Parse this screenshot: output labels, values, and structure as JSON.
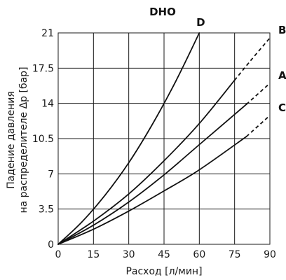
{
  "chart_data": {
    "type": "line",
    "title": "DHO",
    "xlabel": "Расход [л/мин]",
    "ylabel_lines": [
      "Падение давления",
      "на распределителе Δр [бар]"
    ],
    "xlim": [
      0,
      90
    ],
    "ylim": [
      0,
      21
    ],
    "x_ticks": [
      "0",
      "15",
      "30",
      "45",
      "60",
      "75",
      "90"
    ],
    "y_ticks": [
      "0",
      "3.5",
      "7",
      "10.5",
      "14",
      "17.5",
      "21"
    ],
    "x_tick_values": [
      0,
      15,
      30,
      45,
      60,
      75,
      90
    ],
    "y_tick_values": [
      0,
      3.5,
      7,
      10.5,
      14,
      17.5,
      21
    ],
    "grid": true,
    "series": [
      {
        "name": "D",
        "x": [
          0,
          10,
          20,
          30,
          40,
          50,
          60
        ],
        "y": [
          0,
          2.2,
          4.9,
          8.1,
          11.9,
          16.2,
          21.0
        ],
        "extension_x": [],
        "extension_y": []
      },
      {
        "name": "B",
        "x": [
          0,
          15,
          30,
          45,
          60,
          75
        ],
        "y": [
          0,
          2.3,
          5.0,
          8.3,
          12.0,
          16.3
        ],
        "extension_x": [
          75,
          82,
          90
        ],
        "extension_y": [
          16.3,
          18.3,
          20.5
        ]
      },
      {
        "name": "A",
        "x": [
          0,
          15,
          30,
          45,
          60,
          80
        ],
        "y": [
          0,
          1.9,
          4.2,
          6.9,
          9.9,
          13.9
        ],
        "extension_x": [
          80,
          90
        ],
        "extension_y": [
          13.9,
          16.0
        ]
      },
      {
        "name": "C",
        "x": [
          0,
          15,
          30,
          45,
          60,
          80
        ],
        "y": [
          0,
          1.5,
          3.3,
          5.3,
          7.4,
          10.7
        ],
        "extension_x": [
          80,
          90
        ],
        "extension_y": [
          10.7,
          12.8
        ]
      }
    ]
  }
}
